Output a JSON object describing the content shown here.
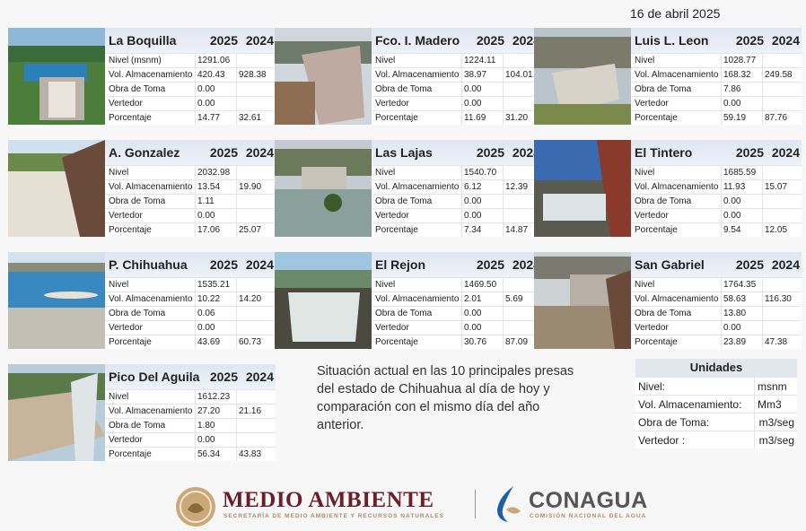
{
  "date": "16 de abril 2025",
  "years": {
    "current": "2025",
    "previous": "2024"
  },
  "row_labels": [
    "Nivel",
    "Vol. Almacenamiento",
    "Obra de Toma",
    "Vertedor",
    "Porcentaje"
  ],
  "dams": [
    {
      "name": "La Boquilla",
      "nivel_label": "Nivel (msnm)",
      "rows": [
        [
          "1291.06",
          ""
        ],
        [
          "420.43",
          "928.38"
        ],
        [
          "0.00",
          ""
        ],
        [
          "0.00",
          ""
        ],
        [
          "14.77",
          "32.61"
        ]
      ]
    },
    {
      "name": "Fco. I. Madero",
      "rows": [
        [
          "1224.11",
          ""
        ],
        [
          "38.97",
          "104.01"
        ],
        [
          "0.00",
          ""
        ],
        [
          "0.00",
          ""
        ],
        [
          "11.69",
          "31.20"
        ]
      ]
    },
    {
      "name": "Luis L. Leon",
      "rows": [
        [
          "1028.77",
          ""
        ],
        [
          "168.32",
          "249.58"
        ],
        [
          "7.86",
          ""
        ],
        [
          "0.00",
          ""
        ],
        [
          "59.19",
          "87.76"
        ]
      ]
    },
    {
      "name": "A. Gonzalez",
      "rows": [
        [
          "2032.98",
          ""
        ],
        [
          "13.54",
          "19.90"
        ],
        [
          "1.11",
          ""
        ],
        [
          "0.00",
          ""
        ],
        [
          "17.06",
          "25.07"
        ]
      ]
    },
    {
      "name": "Las Lajas",
      "rows": [
        [
          "1540.70",
          ""
        ],
        [
          "6.12",
          "12.39"
        ],
        [
          "0.00",
          ""
        ],
        [
          "0.00",
          ""
        ],
        [
          "7.34",
          "14.87"
        ]
      ]
    },
    {
      "name": "El Tintero",
      "rows": [
        [
          "1685.59",
          ""
        ],
        [
          "11.93",
          "15.07"
        ],
        [
          "0.00",
          ""
        ],
        [
          "0.00",
          ""
        ],
        [
          "9.54",
          "12.05"
        ]
      ]
    },
    {
      "name": "P. Chihuahua",
      "rows": [
        [
          "1535.21",
          ""
        ],
        [
          "10.22",
          "14.20"
        ],
        [
          "0.06",
          ""
        ],
        [
          "0.00",
          ""
        ],
        [
          "43.69",
          "60.73"
        ]
      ]
    },
    {
      "name": "El Rejon",
      "rows": [
        [
          "1469.50",
          ""
        ],
        [
          "2.01",
          "5.69"
        ],
        [
          "0.00",
          ""
        ],
        [
          "0.00",
          ""
        ],
        [
          "30.76",
          "87.09"
        ]
      ]
    },
    {
      "name": "San Gabriel",
      "rows": [
        [
          "1764.35",
          ""
        ],
        [
          "58.63",
          "116.30"
        ],
        [
          "13.80",
          ""
        ],
        [
          "0.00",
          ""
        ],
        [
          "23.89",
          "47.38"
        ]
      ]
    },
    {
      "name": "Pico Del Aguila",
      "rows": [
        [
          "1612.23",
          ""
        ],
        [
          "27.20",
          "21.16"
        ],
        [
          "1.80",
          ""
        ],
        [
          "0.00",
          ""
        ],
        [
          "56.34",
          "43.83"
        ]
      ]
    }
  ],
  "description": "Situación actual en las 10 principales presas del estado de Chihuahua al día de hoy y comparación con el mismo día del año anterior.",
  "units": {
    "title": "Unidades",
    "rows": [
      {
        "label": "Nivel:",
        "value": "msnm"
      },
      {
        "label": "Vol. Almacenamiento:",
        "value": "Mm3"
      },
      {
        "label": "Obra de Toma:",
        "value": "m3/seg"
      },
      {
        "label": "Vertedor :",
        "value": "m3/seg"
      }
    ]
  },
  "footer": {
    "medio_ambiente": "MEDIO AMBIENTE",
    "medio_ambiente_sub": "SECRETARÍA DE MEDIO AMBIENTE Y RECURSOS NATURALES",
    "conagua": "CONAGUA",
    "conagua_sub": "COMISIÓN NACIONAL DEL AGUA"
  },
  "colors": {
    "header_bg": "#dfe6f2",
    "semarnat": "#6b1d2a",
    "gold": "#a88b6a",
    "conagua_gray": "#555555",
    "conagua_blue": "#1f5fa8"
  }
}
